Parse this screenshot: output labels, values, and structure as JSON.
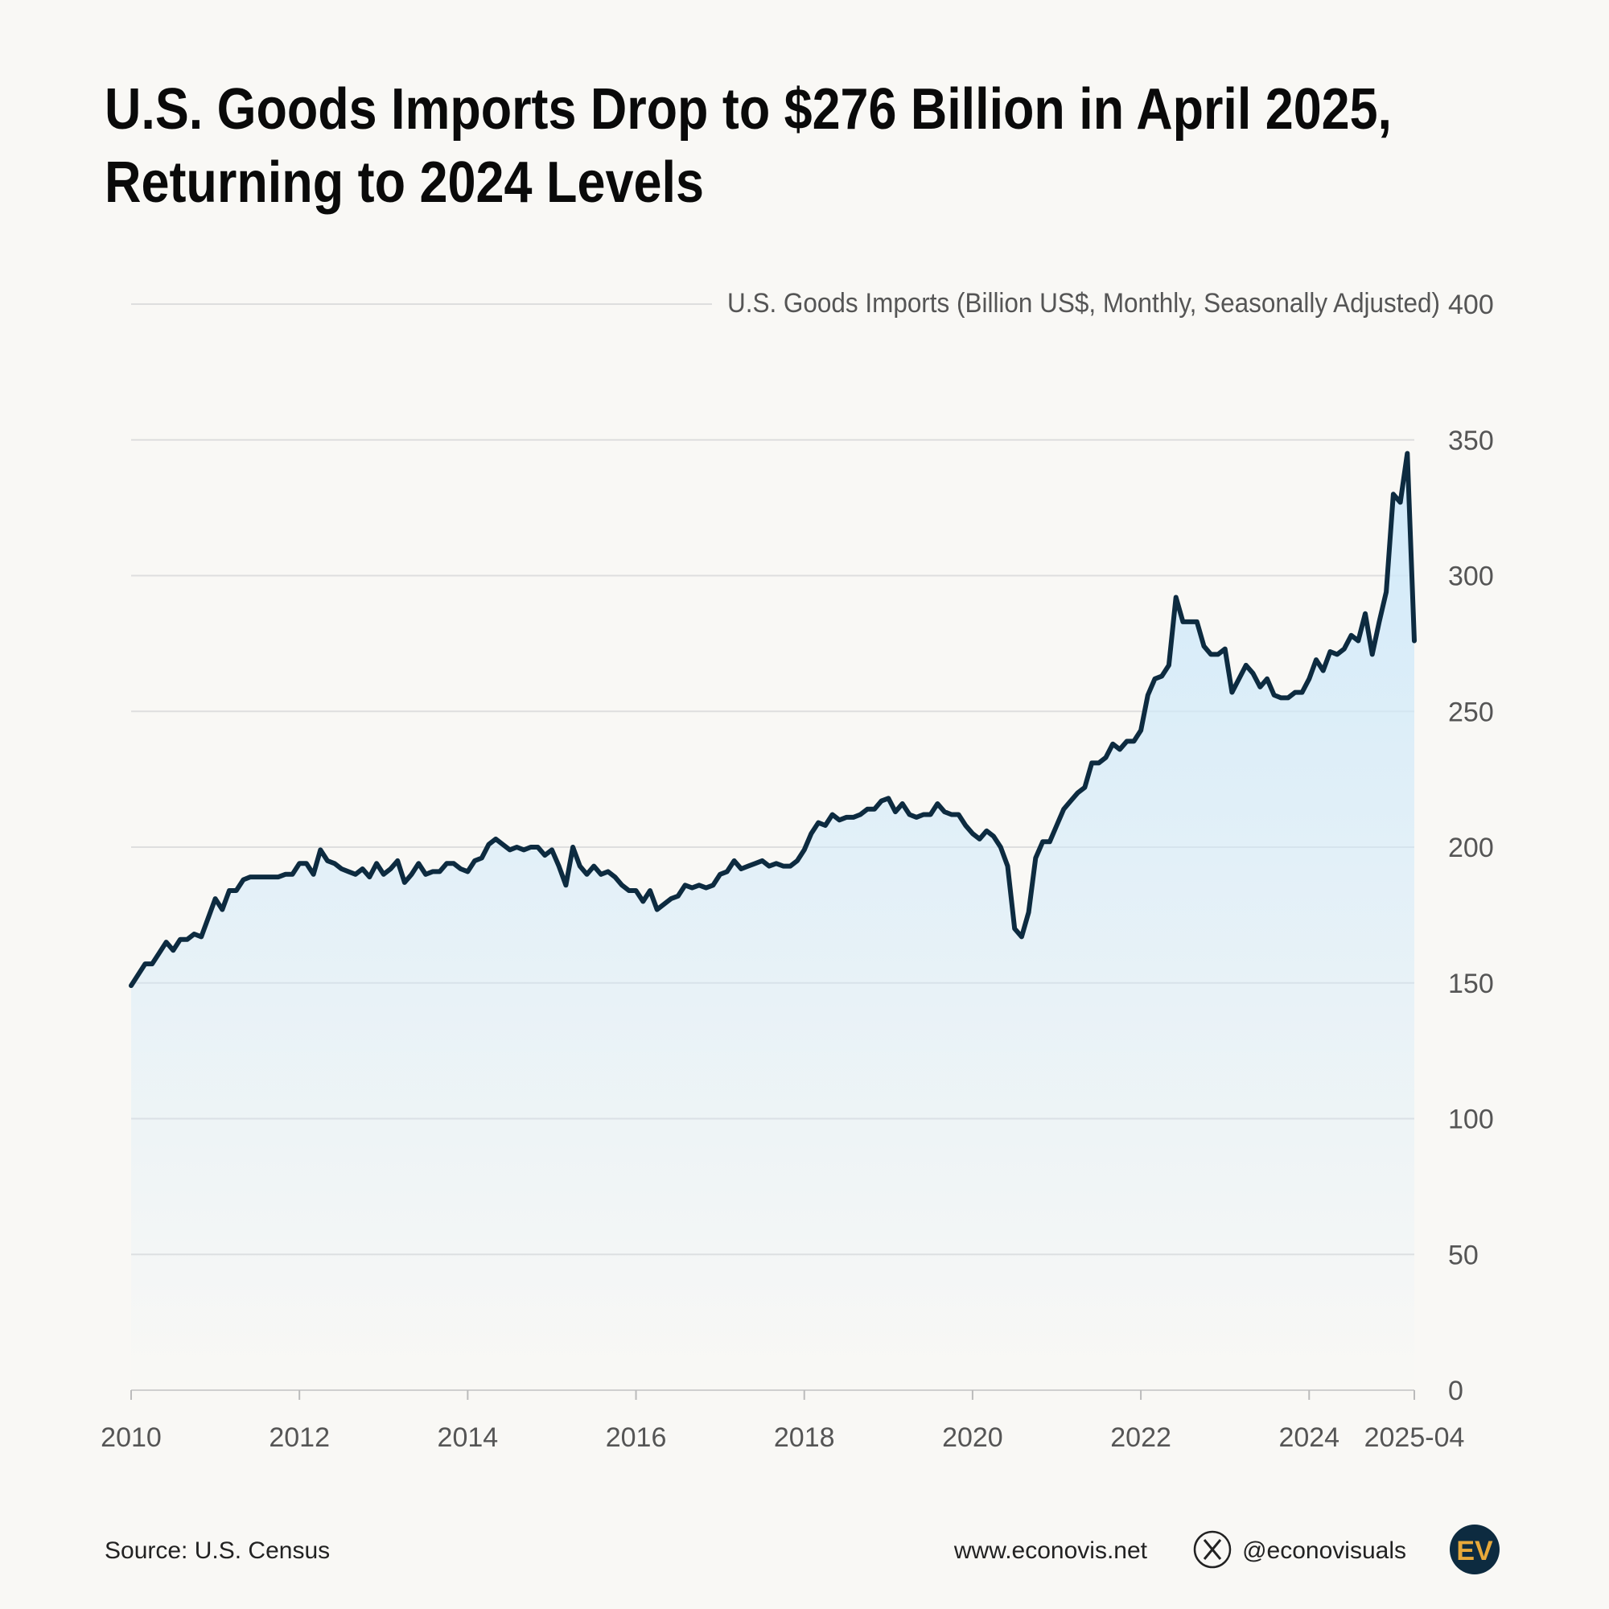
{
  "chart_data": {
    "type": "line",
    "title": [
      "U.S. Goods Imports Drop to $276 Billion in April 2025,",
      "Returning to 2024 Levels"
    ],
    "y_label": "U.S. Goods Imports (Billion US$, Monthly, Seasonally Adjusted)",
    "source": "Source: U.S. Census",
    "website": "www.econovis.net",
    "handle": "@econovisuals",
    "logo": "EV",
    "x": [
      "2010-01",
      "2010-02",
      "2010-03",
      "2010-04",
      "2010-05",
      "2010-06",
      "2010-07",
      "2010-08",
      "2010-09",
      "2010-10",
      "2010-11",
      "2010-12",
      "2011-01",
      "2011-02",
      "2011-03",
      "2011-04",
      "2011-05",
      "2011-06",
      "2011-07",
      "2011-08",
      "2011-09",
      "2011-10",
      "2011-11",
      "2011-12",
      "2012-01",
      "2012-02",
      "2012-03",
      "2012-04",
      "2012-05",
      "2012-06",
      "2012-07",
      "2012-08",
      "2012-09",
      "2012-10",
      "2012-11",
      "2012-12",
      "2013-01",
      "2013-02",
      "2013-03",
      "2013-04",
      "2013-05",
      "2013-06",
      "2013-07",
      "2013-08",
      "2013-09",
      "2013-10",
      "2013-11",
      "2013-12",
      "2014-01",
      "2014-02",
      "2014-03",
      "2014-04",
      "2014-05",
      "2014-06",
      "2014-07",
      "2014-08",
      "2014-09",
      "2014-10",
      "2014-11",
      "2014-12",
      "2015-01",
      "2015-02",
      "2015-03",
      "2015-04",
      "2015-05",
      "2015-06",
      "2015-07",
      "2015-08",
      "2015-09",
      "2015-10",
      "2015-11",
      "2015-12",
      "2016-01",
      "2016-02",
      "2016-03",
      "2016-04",
      "2016-05",
      "2016-06",
      "2016-07",
      "2016-08",
      "2016-09",
      "2016-10",
      "2016-11",
      "2016-12",
      "2017-01",
      "2017-02",
      "2017-03",
      "2017-04",
      "2017-05",
      "2017-06",
      "2017-07",
      "2017-08",
      "2017-09",
      "2017-10",
      "2017-11",
      "2017-12",
      "2018-01",
      "2018-02",
      "2018-03",
      "2018-04",
      "2018-05",
      "2018-06",
      "2018-07",
      "2018-08",
      "2018-09",
      "2018-10",
      "2018-11",
      "2018-12",
      "2019-01",
      "2019-02",
      "2019-03",
      "2019-04",
      "2019-05",
      "2019-06",
      "2019-07",
      "2019-08",
      "2019-09",
      "2019-10",
      "2019-11",
      "2019-12",
      "2020-01",
      "2020-02",
      "2020-03",
      "2020-04",
      "2020-05",
      "2020-06",
      "2020-07",
      "2020-08",
      "2020-09",
      "2020-10",
      "2020-11",
      "2020-12",
      "2021-01",
      "2021-02",
      "2021-03",
      "2021-04",
      "2021-05",
      "2021-06",
      "2021-07",
      "2021-08",
      "2021-09",
      "2021-10",
      "2021-11",
      "2021-12",
      "2022-01",
      "2022-02",
      "2022-03",
      "2022-04",
      "2022-05",
      "2022-06",
      "2022-07",
      "2022-08",
      "2022-09",
      "2022-10",
      "2022-11",
      "2022-12",
      "2023-01",
      "2023-02",
      "2023-03",
      "2023-04",
      "2023-05",
      "2023-06",
      "2023-07",
      "2023-08",
      "2023-09",
      "2023-10",
      "2023-11",
      "2023-12",
      "2024-01",
      "2024-02",
      "2024-03",
      "2024-04",
      "2024-05",
      "2024-06",
      "2024-07",
      "2024-08",
      "2024-09",
      "2024-10",
      "2024-11",
      "2024-12",
      "2025-01",
      "2025-02",
      "2025-03",
      "2025-04"
    ],
    "series": [
      {
        "color": "#0d2b40",
        "values": [
          149,
          153,
          157,
          157,
          161,
          165,
          162,
          166,
          166,
          168,
          167,
          174,
          181,
          177,
          184,
          184,
          188,
          189,
          189,
          189,
          189,
          189,
          190,
          190,
          194,
          194,
          190,
          199,
          195,
          194,
          192,
          191,
          190,
          192,
          189,
          194,
          190,
          192,
          195,
          187,
          190,
          194,
          190,
          191,
          191,
          194,
          194,
          192,
          191,
          195,
          196,
          201,
          203,
          201,
          199,
          200,
          199,
          200,
          200,
          197,
          199,
          193,
          186,
          200,
          193,
          190,
          193,
          190,
          191,
          189,
          186,
          184,
          184,
          180,
          184,
          177,
          179,
          181,
          182,
          186,
          185,
          186,
          185,
          186,
          190,
          191,
          195,
          192,
          193,
          194,
          195,
          193,
          194,
          193,
          193,
          195,
          199,
          205,
          209,
          208,
          212,
          210,
          211,
          211,
          212,
          214,
          214,
          217,
          218,
          213,
          216,
          212,
          211,
          212,
          212,
          216,
          213,
          212,
          212,
          208,
          205,
          203,
          206,
          204,
          200,
          193,
          170,
          167,
          176,
          196,
          202,
          202,
          208,
          214,
          217,
          220,
          222,
          231,
          231,
          233,
          238,
          236,
          239,
          239,
          243,
          256,
          262,
          263,
          267,
          292,
          283,
          283,
          283,
          274,
          271,
          271,
          273,
          257,
          262,
          267,
          264,
          259,
          262,
          256,
          255,
          255,
          257,
          257,
          262,
          269,
          265,
          272,
          271,
          273,
          278,
          276,
          286,
          271,
          283,
          294,
          330,
          327,
          345,
          276
        ]
      }
    ],
    "xlim": [
      "2010-01",
      "2025-04"
    ],
    "xticks": [
      {
        "value": "2010-01",
        "label": "2010"
      },
      {
        "value": "2012-01",
        "label": "2012"
      },
      {
        "value": "2014-01",
        "label": "2014"
      },
      {
        "value": "2016-01",
        "label": "2016"
      },
      {
        "value": "2018-01",
        "label": "2018"
      },
      {
        "value": "2020-01",
        "label": "2020"
      },
      {
        "value": "2022-01",
        "label": "2022"
      },
      {
        "value": "2024-01",
        "label": "2024"
      },
      "2025-04"
    ],
    "ylim": [
      0,
      400
    ],
    "yticks": [
      0,
      50,
      100,
      150,
      200,
      250,
      300,
      350,
      400
    ],
    "grid": true,
    "area_fill": "#cfe9fa"
  }
}
